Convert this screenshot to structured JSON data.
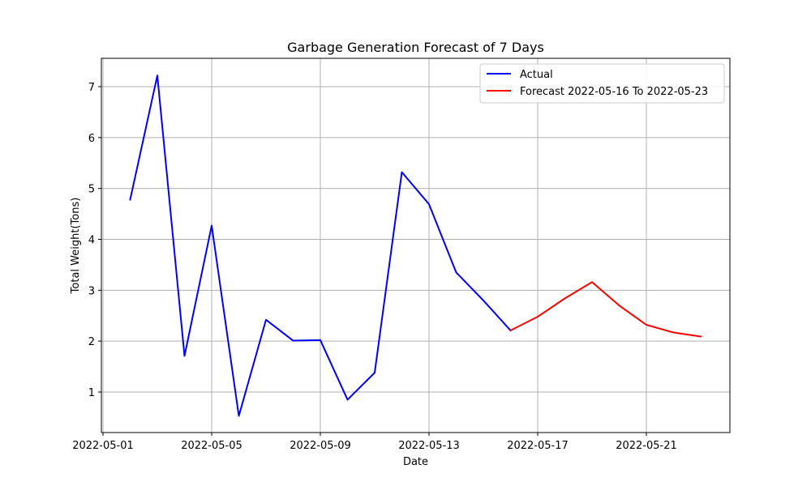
{
  "chart_data": {
    "type": "line",
    "title": "Garbage Generation Forecast of 7 Days",
    "xlabel": "Date",
    "ylabel": "Total Weight(Tons)",
    "x_type": "date",
    "xlim": [
      "2022-05-01",
      "2022-05-24"
    ],
    "ylim": [
      0.2,
      7.5
    ],
    "x_ticks": [
      "2022-05-01",
      "2022-05-05",
      "2022-05-09",
      "2022-05-13",
      "2022-05-17",
      "2022-05-21"
    ],
    "y_ticks": [
      1,
      2,
      3,
      4,
      5,
      6,
      7
    ],
    "grid": true,
    "legend_position": "top-right",
    "series": [
      {
        "name": "Actual",
        "color": "#0000ff",
        "points": [
          {
            "x": "2022-05-02",
            "y": 4.78
          },
          {
            "x": "2022-05-03",
            "y": 7.22
          },
          {
            "x": "2022-05-04",
            "y": 1.71
          },
          {
            "x": "2022-05-05",
            "y": 4.27
          },
          {
            "x": "2022-05-06",
            "y": 0.53
          },
          {
            "x": "2022-05-07",
            "y": 2.42
          },
          {
            "x": "2022-05-08",
            "y": 2.01
          },
          {
            "x": "2022-05-09",
            "y": 2.02
          },
          {
            "x": "2022-05-10",
            "y": 0.85
          },
          {
            "x": "2022-05-11",
            "y": 1.38
          },
          {
            "x": "2022-05-12",
            "y": 5.32
          },
          {
            "x": "2022-05-13",
            "y": 4.69
          },
          {
            "x": "2022-05-14",
            "y": 3.35
          },
          {
            "x": "2022-05-15",
            "y": 2.8
          },
          {
            "x": "2022-05-16",
            "y": 2.21
          }
        ]
      },
      {
        "name": "Forecast 2022-05-16 To 2022-05-23",
        "color": "#ff0000",
        "points": [
          {
            "x": "2022-05-16",
            "y": 2.21
          },
          {
            "x": "2022-05-17",
            "y": 2.48
          },
          {
            "x": "2022-05-18",
            "y": 2.84
          },
          {
            "x": "2022-05-19",
            "y": 3.16
          },
          {
            "x": "2022-05-20",
            "y": 2.7
          },
          {
            "x": "2022-05-21",
            "y": 2.32
          },
          {
            "x": "2022-05-22",
            "y": 2.17
          },
          {
            "x": "2022-05-23",
            "y": 2.09
          }
        ]
      }
    ]
  }
}
